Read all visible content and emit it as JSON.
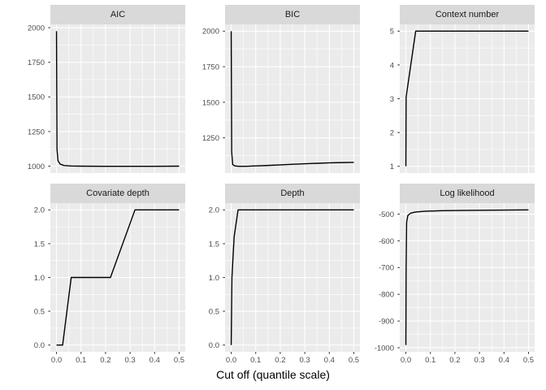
{
  "chart_data": {
    "type": "line",
    "layout": "faceted 2x3, free y scales, shared x scale",
    "title": "",
    "xlabel": "Cut off (quantile scale)",
    "xlim": [
      -0.025,
      0.525
    ],
    "xticks": [
      0.0,
      0.1,
      0.2,
      0.3,
      0.4,
      0.5
    ],
    "xtick_labels": [
      "0.0",
      "0.1",
      "0.2",
      "0.3",
      "0.4",
      "0.5"
    ],
    "x_minor": [
      0.05,
      0.15,
      0.25,
      0.35,
      0.45
    ],
    "grid": "on",
    "legend": "none",
    "colors": {
      "panel_background": "#ebebeb",
      "strip_background": "#d9d9d9",
      "gridline": "#ffffff",
      "line": "#000000",
      "tick_label": "#4d4d4d",
      "tick_mark": "#333333",
      "strip_text": "#1a1a1a",
      "axis_title": "#000000"
    },
    "facets": [
      {
        "title": "AIC",
        "ylim": [
          950.2,
          2023.8
        ],
        "yticks": [
          1000,
          1250,
          1500,
          1750,
          2000
        ],
        "ytick_labels": [
          "1000",
          "1250",
          "1500",
          "1750",
          "2000"
        ],
        "y_minor": [
          1125,
          1375,
          1625,
          1875
        ],
        "points": [
          [
            0,
            1975
          ],
          [
            0.002,
            1120
          ],
          [
            0.006,
            1040
          ],
          [
            0.015,
            1015
          ],
          [
            0.03,
            1005
          ],
          [
            0.06,
            1001
          ],
          [
            0.1,
            1000
          ],
          [
            0.2,
            999
          ],
          [
            0.3,
            999
          ],
          [
            0.4,
            999
          ],
          [
            0.5,
            1000
          ]
        ]
      },
      {
        "title": "BIC",
        "ylim": [
          1002.5,
          2047.5
        ],
        "yticks": [
          1250,
          1500,
          1750,
          2000
        ],
        "ytick_labels": [
          "1250",
          "1500",
          "1750",
          "2000"
        ],
        "y_minor": [
          1125,
          1375,
          1625,
          1875
        ],
        "points": [
          [
            0,
            2000
          ],
          [
            0.002,
            1150
          ],
          [
            0.006,
            1062
          ],
          [
            0.015,
            1053
          ],
          [
            0.03,
            1050
          ],
          [
            0.06,
            1050
          ],
          [
            0.1,
            1053
          ],
          [
            0.15,
            1056
          ],
          [
            0.2,
            1060
          ],
          [
            0.25,
            1064
          ],
          [
            0.3,
            1068
          ],
          [
            0.35,
            1071
          ],
          [
            0.4,
            1074
          ],
          [
            0.45,
            1076
          ],
          [
            0.5,
            1078
          ]
        ]
      },
      {
        "title": "Context number",
        "ylim": [
          0.8,
          5.2
        ],
        "yticks": [
          1,
          2,
          3,
          4,
          5
        ],
        "ytick_labels": [
          "1",
          "2",
          "3",
          "4",
          "5"
        ],
        "y_minor": [
          1.5,
          2.5,
          3.5,
          4.5
        ],
        "points": [
          [
            0,
            1
          ],
          [
            0.001,
            3.05
          ],
          [
            0.04,
            5
          ],
          [
            0.1,
            5
          ],
          [
            0.2,
            5
          ],
          [
            0.3,
            5
          ],
          [
            0.4,
            5
          ],
          [
            0.5,
            5
          ]
        ]
      },
      {
        "title": "Covariate depth",
        "ylim": [
          -0.1,
          2.1
        ],
        "yticks": [
          0.0,
          0.5,
          1.0,
          1.5,
          2.0
        ],
        "ytick_labels": [
          "0.0",
          "0.5",
          "1.0",
          "1.5",
          "2.0"
        ],
        "y_minor": [
          0.25,
          0.75,
          1.25,
          1.75
        ],
        "points": [
          [
            0,
            0
          ],
          [
            0.025,
            0
          ],
          [
            0.06,
            1
          ],
          [
            0.12,
            1
          ],
          [
            0.22,
            1
          ],
          [
            0.32,
            2
          ],
          [
            0.4,
            2
          ],
          [
            0.5,
            2
          ]
        ]
      },
      {
        "title": "Depth",
        "ylim": [
          -0.1,
          2.1
        ],
        "yticks": [
          0.0,
          0.5,
          1.0,
          1.5,
          2.0
        ],
        "ytick_labels": [
          "0.0",
          "0.5",
          "1.0",
          "1.5",
          "2.0"
        ],
        "y_minor": [
          0.25,
          0.75,
          1.25,
          1.75
        ],
        "points": [
          [
            0,
            0
          ],
          [
            0.003,
            1
          ],
          [
            0.012,
            1.6
          ],
          [
            0.028,
            2
          ],
          [
            0.1,
            2
          ],
          [
            0.2,
            2
          ],
          [
            0.3,
            2
          ],
          [
            0.4,
            2
          ],
          [
            0.5,
            2
          ]
        ]
      },
      {
        "title": "Log likelihood",
        "ylim": [
          -1015.3,
          -458.7
        ],
        "yticks": [
          -1000,
          -900,
          -800,
          -700,
          -600,
          -500
        ],
        "ytick_labels": [
          "-1000",
          "-900",
          "-800",
          "-700",
          "-600",
          "-500"
        ],
        "y_minor": [
          -950,
          -850,
          -750,
          -650,
          -550
        ],
        "points": [
          [
            0,
            -990
          ],
          [
            0.001,
            -700
          ],
          [
            0.003,
            -530
          ],
          [
            0.008,
            -505
          ],
          [
            0.02,
            -496
          ],
          [
            0.04,
            -492
          ],
          [
            0.08,
            -489
          ],
          [
            0.15,
            -487
          ],
          [
            0.25,
            -486
          ],
          [
            0.35,
            -485
          ],
          [
            0.5,
            -484
          ]
        ]
      }
    ]
  }
}
